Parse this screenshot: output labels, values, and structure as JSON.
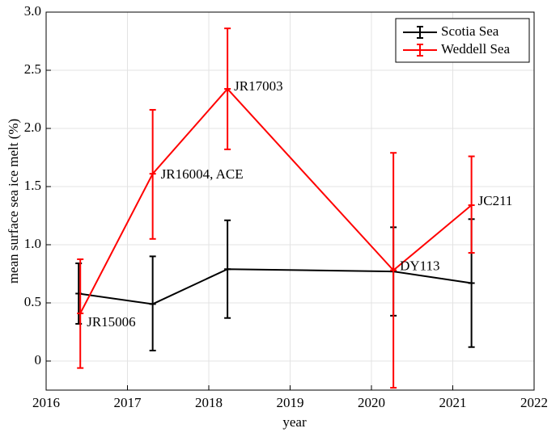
{
  "chart_data": {
    "type": "errorbar",
    "xlabel": "year",
    "ylabel": "mean surface sea ice melt (%)",
    "xlim": [
      2016,
      2022
    ],
    "xticks": [
      2016,
      2017,
      2018,
      2019,
      2020,
      2021,
      2022
    ],
    "ylim": [
      -0.25,
      3.0
    ],
    "yticks": [
      0,
      0.5,
      {
        "value": 1.0,
        "label": "1.0"
      },
      1.5,
      {
        "value": 2.0,
        "label": "2.0"
      },
      2.5,
      {
        "value": 3.0,
        "label": "3.0"
      }
    ],
    "grid": true,
    "legend": "upper right",
    "series": [
      {
        "name": "Scotia Sea",
        "color": "#000000",
        "x": [
          2016.4,
          2017.31,
          2018.23,
          2020.27,
          2021.23
        ],
        "values": [
          0.58,
          0.49,
          0.79,
          0.77,
          0.67
        ],
        "lower": [
          0.32,
          0.09,
          0.37,
          0.39,
          0.12
        ],
        "upper": [
          0.84,
          0.9,
          1.21,
          1.15,
          1.22
        ]
      },
      {
        "name": "Weddell Sea",
        "color": "#ff0000",
        "x": [
          2016.42,
          2017.31,
          2018.23,
          2020.27,
          2021.23
        ],
        "values": [
          0.41,
          1.61,
          2.34,
          0.78,
          1.34
        ],
        "lower": [
          -0.06,
          1.05,
          1.82,
          -0.23,
          0.93
        ],
        "upper": [
          0.875,
          2.16,
          2.86,
          1.79,
          1.76
        ],
        "point_labels": [
          "JR15006",
          "JR16004, ACE",
          "JR17003",
          "DY113",
          "JC211"
        ]
      }
    ]
  }
}
